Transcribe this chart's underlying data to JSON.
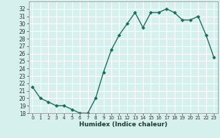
{
  "x": [
    0,
    1,
    2,
    3,
    4,
    5,
    6,
    7,
    8,
    9,
    10,
    11,
    12,
    13,
    14,
    15,
    16,
    17,
    18,
    19,
    20,
    21,
    22,
    23
  ],
  "y": [
    21.5,
    20.0,
    19.5,
    19.0,
    19.0,
    18.5,
    18.0,
    18.0,
    20.0,
    23.5,
    26.5,
    28.5,
    30.0,
    31.5,
    29.5,
    31.5,
    31.5,
    32.0,
    31.5,
    30.5,
    30.5,
    31.0,
    28.5,
    25.5
  ],
  "xlabel": "Humidex (Indice chaleur)",
  "line_color": "#1a6b5a",
  "marker_color": "#1a6b5a",
  "bg_color": "#d6f0ee",
  "grid_color": "#ffffff",
  "ylim": [
    18,
    33
  ],
  "xlim": [
    -0.5,
    23.5
  ],
  "yticks": [
    18,
    19,
    20,
    21,
    22,
    23,
    24,
    25,
    26,
    27,
    28,
    29,
    30,
    31,
    32
  ],
  "xticks": [
    0,
    1,
    2,
    3,
    4,
    5,
    6,
    7,
    8,
    9,
    10,
    11,
    12,
    13,
    14,
    15,
    16,
    17,
    18,
    19,
    20,
    21,
    22,
    23
  ],
  "xtick_labels": [
    "0",
    "1",
    "2",
    "3",
    "4",
    "5",
    "6",
    "7",
    "8",
    "9",
    "10",
    "11",
    "12",
    "13",
    "14",
    "15",
    "16",
    "17",
    "18",
    "19",
    "20",
    "21",
    "22",
    "23"
  ],
  "linewidth": 1.0,
  "markersize": 2.5
}
